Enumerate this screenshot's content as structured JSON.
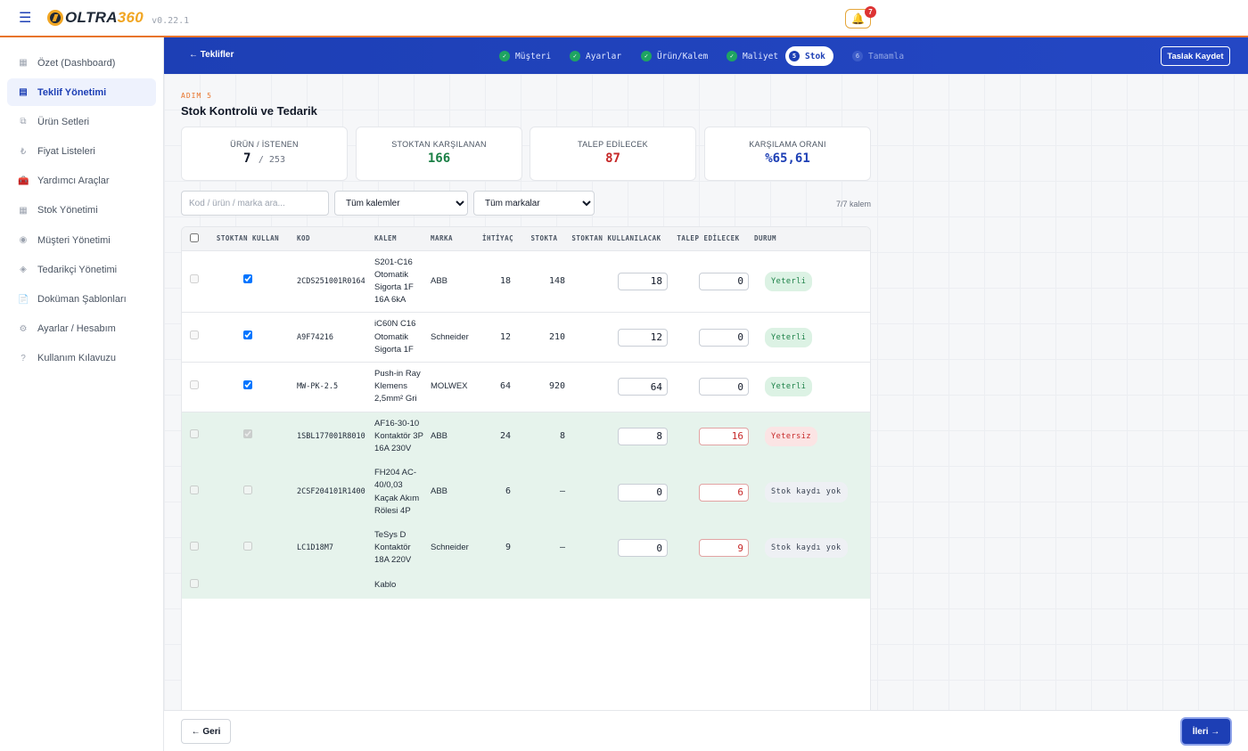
{
  "app": {
    "brand_a": "OLTRA",
    "brand_b": "360",
    "version": "v0.22.1",
    "notifications": "7"
  },
  "sidebar": {
    "items": [
      {
        "label": "Özet (Dashboard)",
        "icon": "dashboard-icon",
        "glyph": "▦"
      },
      {
        "label": "Teklif Yönetimi",
        "icon": "offers-icon",
        "glyph": "▤",
        "active": true
      },
      {
        "label": "Ürün Setleri",
        "icon": "product-sets-icon",
        "glyph": "⧉"
      },
      {
        "label": "Fiyat Listeleri",
        "icon": "lira-icon",
        "glyph": "₺"
      },
      {
        "label": "Yardımcı Araçlar",
        "icon": "toolbox-icon",
        "glyph": "🧰"
      },
      {
        "label": "Stok Yönetimi",
        "icon": "stock-icon",
        "glyph": "▦"
      },
      {
        "label": "Müşteri Yönetimi",
        "icon": "customer-icon",
        "glyph": "◉"
      },
      {
        "label": "Tedarikçi Yönetimi",
        "icon": "supplier-icon",
        "glyph": "◈"
      },
      {
        "label": "Doküman Şablonları",
        "icon": "document-icon",
        "glyph": "📄"
      },
      {
        "label": "Ayarlar / Hesabım",
        "icon": "settings-icon",
        "glyph": "⚙"
      },
      {
        "label": "Kullanım Kılavuzu",
        "icon": "help-icon",
        "glyph": "?"
      }
    ]
  },
  "stepper": {
    "back": "← Teklifler",
    "draft": "Taslak Kaydet",
    "steps": [
      {
        "label": "Müşteri",
        "mark": "✓"
      },
      {
        "label": "Ayarlar",
        "mark": "✓"
      },
      {
        "label": "Ürün/Kalem",
        "mark": "✓"
      },
      {
        "label": "Maliyet",
        "mark": "✓"
      },
      {
        "label": "Stok",
        "mark": "5"
      },
      {
        "label": "Tamamla",
        "mark": "6"
      }
    ]
  },
  "page": {
    "step_label": "ADIM 5",
    "title": "Stok Kontrolü ve Tedarik"
  },
  "kpis": [
    {
      "label": "ÜRÜN / İSTENEN",
      "value": "7",
      "sub": "/ 253",
      "color": "#111827"
    },
    {
      "label": "STOKTAN KARŞILANAN",
      "value": "166",
      "color": "#1a7f45"
    },
    {
      "label": "TALEP EDİLECEK",
      "value": "87",
      "color": "#c62828"
    },
    {
      "label": "KARŞILAMA ORANI",
      "value": "%65,61",
      "color": "#1d3fb5"
    }
  ],
  "filters": {
    "search_placeholder": "Kod / ürün / marka ara...",
    "category": "Tüm kalemler",
    "brand": "Tüm markalar",
    "count": "7/7 kalem"
  },
  "table": {
    "headers": [
      "STOKTAN KULLAN",
      "KOD",
      "KALEM",
      "MARKA",
      "İHTİYAÇ",
      "STOKTA",
      "STOKTAN KULLANILACAK",
      "TALEP EDİLECEK",
      "DURUM"
    ],
    "rows": [
      {
        "code": "2CDS251001R0164",
        "item": "S201-C16 Otomatik Sigorta 1F 16A 6kA",
        "brand": "ABB",
        "need": "18",
        "stock": "148",
        "use": "18",
        "req": "0",
        "status": "Yeterli",
        "kind": "ok",
        "checked": true
      },
      {
        "code": "A9F74216",
        "item": "iC60N C16 Otomatik Sigorta 1F",
        "brand": "Schneider",
        "need": "12",
        "stock": "210",
        "use": "12",
        "req": "0",
        "status": "Yeterli",
        "kind": "ok",
        "checked": true
      },
      {
        "code": "MW-PK-2.5",
        "item": "Push-in Ray Klemens 2,5mm² Gri",
        "brand": "MOLWEX",
        "need": "64",
        "stock": "920",
        "use": "64",
        "req": "0",
        "status": "Yeterli",
        "kind": "ok",
        "checked": true
      },
      {
        "code": "1SBL177001R8010",
        "item": "AF16-30-10 Kontaktör 3P 16A 230V",
        "brand": "ABB",
        "need": "24",
        "stock": "8",
        "use": "8",
        "req": "16",
        "status": "Yetersiz",
        "kind": "bad",
        "checked": true
      },
      {
        "code": "2CSF204101R1400",
        "item": "FH204 AC-40/0,03 Kaçak Akım Rölesi 4P",
        "brand": "ABB",
        "need": "6",
        "stock": "—",
        "use": "0",
        "req": "6",
        "status": "Stok kaydı yok",
        "kind": "none",
        "checked": false
      },
      {
        "code": "LC1D18M7",
        "item": "TeSys D Kontaktör 18A 220V",
        "brand": "Schneider",
        "need": "9",
        "stock": "—",
        "use": "0",
        "req": "9",
        "status": "Stok kaydı yok",
        "kind": "none",
        "checked": false
      },
      {
        "code": "",
        "item": "Kablo",
        "brand": "",
        "need": "",
        "stock": "",
        "use": "",
        "req": "",
        "status": "",
        "kind": "partial",
        "checked": false
      }
    ]
  },
  "footer": {
    "back": "← Geri",
    "next": "İleri →"
  }
}
